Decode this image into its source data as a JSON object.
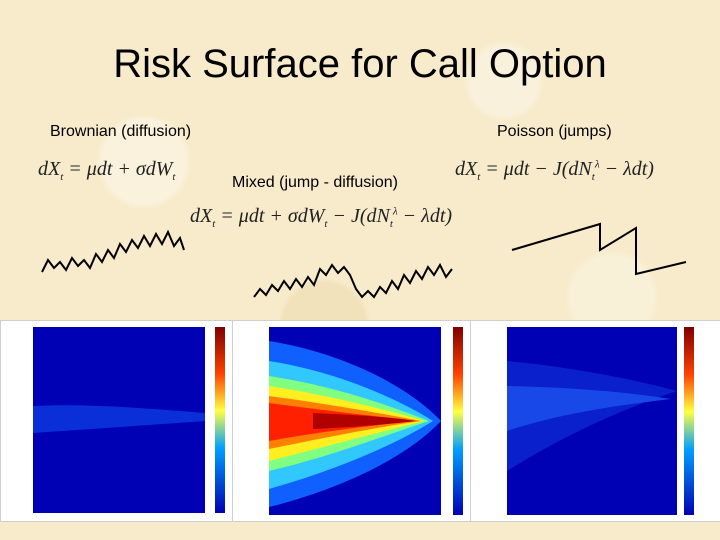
{
  "slide": {
    "title": "Risk Surface for Call Option"
  },
  "panels": {
    "brownian": {
      "label": "Brownian (diffusion)",
      "formula": "dX_t = μdt + σdW_t"
    },
    "poisson": {
      "label": "Poisson (jumps)",
      "formula": "dX_t = μdt − J(dN_t^λ − λdt)"
    },
    "mixed": {
      "label": "Mixed (jump - diffusion)",
      "formula": "dX_t = μdt + σdW_t − J(dN_t^λ − λdt)"
    }
  },
  "colors": {
    "background": "#f7ebcb",
    "plot_low": "#0000b4",
    "plot_high": "#7f0000"
  }
}
